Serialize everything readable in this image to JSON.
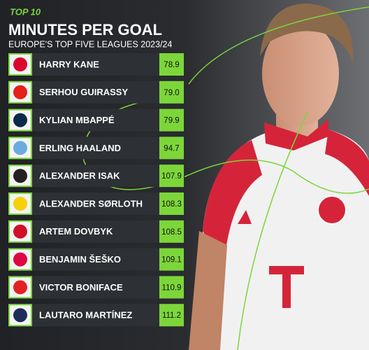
{
  "header": {
    "kicker": "TOP 10",
    "title": "MINUTES PER GOAL",
    "subtitle": "EUROPE'S TOP FIVE LEAGUES 2023/24"
  },
  "table": {
    "rows": [
      [
        "HARRY KANE",
        "78.9"
      ],
      [
        "SERHOU GUIRASSY",
        "79.0"
      ],
      [
        "KYLIAN MBAPPÉ",
        "79.9"
      ],
      [
        "ERLING HAALAND",
        "94.7"
      ],
      [
        "ALEXANDER ISAK",
        "107.9"
      ],
      [
        "ALEXANDER SØRLOTH",
        "108.3"
      ],
      [
        "ARTEM DOVBYK",
        "108.5"
      ],
      [
        "BENJAMIN ŠEŠKO",
        "109.1"
      ],
      [
        "VICTOR BONIFACE",
        "110.9"
      ],
      [
        "LAUTARO MARTÍNEZ",
        "111.2"
      ]
    ]
  }
}
